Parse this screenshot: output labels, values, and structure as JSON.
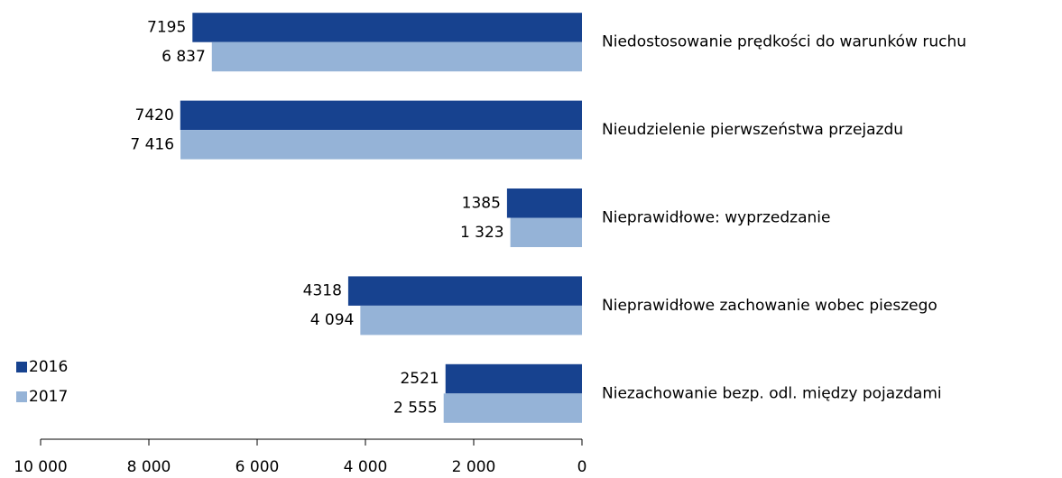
{
  "chart_data": {
    "type": "barh",
    "categories": [
      "Niedostosowanie prędkości do warunków ruchu",
      "Nieudzielenie pierwszeństwa przejazdu",
      "Nieprawidłowe: wyprzedzanie",
      "Nieprawidłowe zachowanie wobec pieszego",
      "Niezachowanie bezp. odl. między pojazdami"
    ],
    "series": [
      {
        "name": "2016",
        "color": "#17428f",
        "values": [
          7195,
          7420,
          1385,
          4318,
          2521
        ]
      },
      {
        "name": "2017",
        "color": "#95b3d7",
        "values": [
          6837,
          7416,
          1323,
          4094,
          2555
        ],
        "value_labels": [
          "6 837",
          "7 416",
          "1 323",
          "4 094",
          "2 555"
        ]
      }
    ],
    "xlim": [
      10000,
      0
    ],
    "xticks": [
      {
        "value": 10000,
        "label": "10 000"
      },
      {
        "value": 8000,
        "label": "8 000"
      },
      {
        "value": 6000,
        "label": "6 000"
      },
      {
        "value": 4000,
        "label": "4 000"
      },
      {
        "value": 2000,
        "label": "2 000"
      },
      0
    ],
    "legend": "bottom-left"
  }
}
